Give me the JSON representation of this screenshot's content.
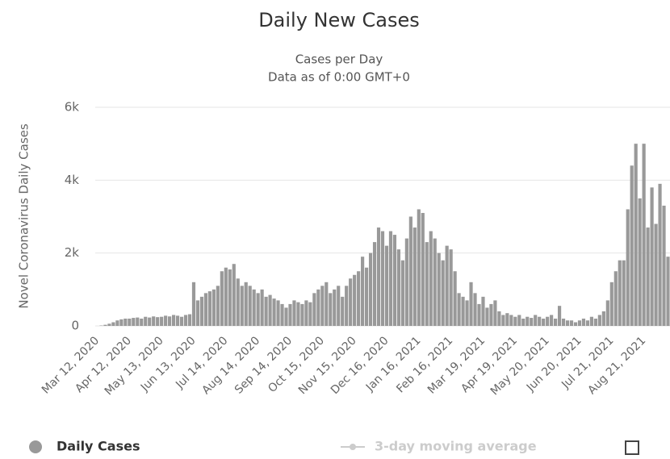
{
  "chart_data": {
    "type": "bar",
    "title": "Daily New Cases",
    "subtitle": "Cases per Day",
    "note": "Data as of 0:00 GMT+0",
    "y_label": "Novel Coronavirus Daily Cases",
    "categories": [
      "Mar 12, 2020",
      null,
      null,
      null,
      null,
      null,
      null,
      null,
      "Apr 12, 2020",
      null,
      null,
      null,
      null,
      null,
      null,
      null,
      "May 13, 2020",
      null,
      null,
      null,
      null,
      null,
      null,
      null,
      "Jun 13, 2020",
      null,
      null,
      null,
      null,
      null,
      null,
      null,
      "Jul 14, 2020",
      null,
      null,
      null,
      null,
      null,
      null,
      null,
      "Aug 14, 2020",
      null,
      null,
      null,
      null,
      null,
      null,
      null,
      "Sep 14, 2020",
      null,
      null,
      null,
      null,
      null,
      null,
      null,
      "Oct 15, 2020",
      null,
      null,
      null,
      null,
      null,
      null,
      null,
      "Nov 15, 2020",
      null,
      null,
      null,
      null,
      null,
      null,
      null,
      "Dec 16, 2020",
      null,
      null,
      null,
      null,
      null,
      null,
      null,
      "Jan 16, 2021",
      null,
      null,
      null,
      null,
      null,
      null,
      null,
      "Feb 16, 2021",
      null,
      null,
      null,
      null,
      null,
      null,
      null,
      "Mar 19, 2021",
      null,
      null,
      null,
      null,
      null,
      null,
      null,
      "Apr 19, 2021",
      null,
      null,
      null,
      null,
      null,
      null,
      null,
      "May 20, 2021",
      null,
      null,
      null,
      null,
      null,
      null,
      null,
      "Jun 20, 2021",
      null,
      null,
      null,
      null,
      null,
      null,
      null,
      "Jul 21, 2021",
      null,
      null,
      null,
      null,
      null,
      null,
      null,
      "Aug 21, 2021",
      null,
      null,
      null,
      null,
      null,
      null
    ],
    "series": [
      {
        "name": "Daily Cases",
        "color": "#999999",
        "values": [
          0,
          10,
          30,
          60,
          100,
          150,
          180,
          200,
          200,
          220,
          230,
          200,
          250,
          230,
          260,
          240,
          250,
          280,
          260,
          300,
          280,
          250,
          300,
          320,
          1200,
          700,
          800,
          900,
          950,
          1000,
          1100,
          1500,
          1600,
          1550,
          1700,
          1300,
          1100,
          1200,
          1100,
          1000,
          900,
          1000,
          800,
          850,
          750,
          700,
          600,
          500,
          600,
          700,
          650,
          600,
          700,
          650,
          900,
          1000,
          1100,
          1200,
          900,
          1000,
          1100,
          800,
          1100,
          1300,
          1400,
          1500,
          1900,
          1600,
          2000,
          2300,
          2700,
          2600,
          2200,
          2600,
          2500,
          2100,
          1800,
          2400,
          3000,
          2700,
          3200,
          3100,
          2300,
          2600,
          2400,
          2000,
          1800,
          2200,
          2100,
          1500,
          900,
          800,
          700,
          1200,
          900,
          600,
          800,
          500,
          600,
          700,
          400,
          300,
          350,
          300,
          250,
          300,
          200,
          250,
          220,
          300,
          250,
          200,
          250,
          300,
          200,
          550,
          200,
          150,
          150,
          100,
          150,
          200,
          150,
          250,
          200,
          300,
          400,
          700,
          1200,
          1500,
          1800,
          1800,
          3200,
          4400,
          5000,
          3500,
          5000,
          2700,
          3800,
          2800,
          3900,
          3300,
          1900
        ]
      },
      {
        "name": "3-day moving average",
        "color": "#cccccc"
      }
    ],
    "ylim": [
      0,
      6000
    ],
    "yticks": [
      0,
      {
        "value": 2000,
        "label": "2k"
      },
      {
        "value": 4000,
        "label": "4k"
      },
      {
        "value": 6000,
        "label": "6k"
      }
    ],
    "grid": true
  }
}
